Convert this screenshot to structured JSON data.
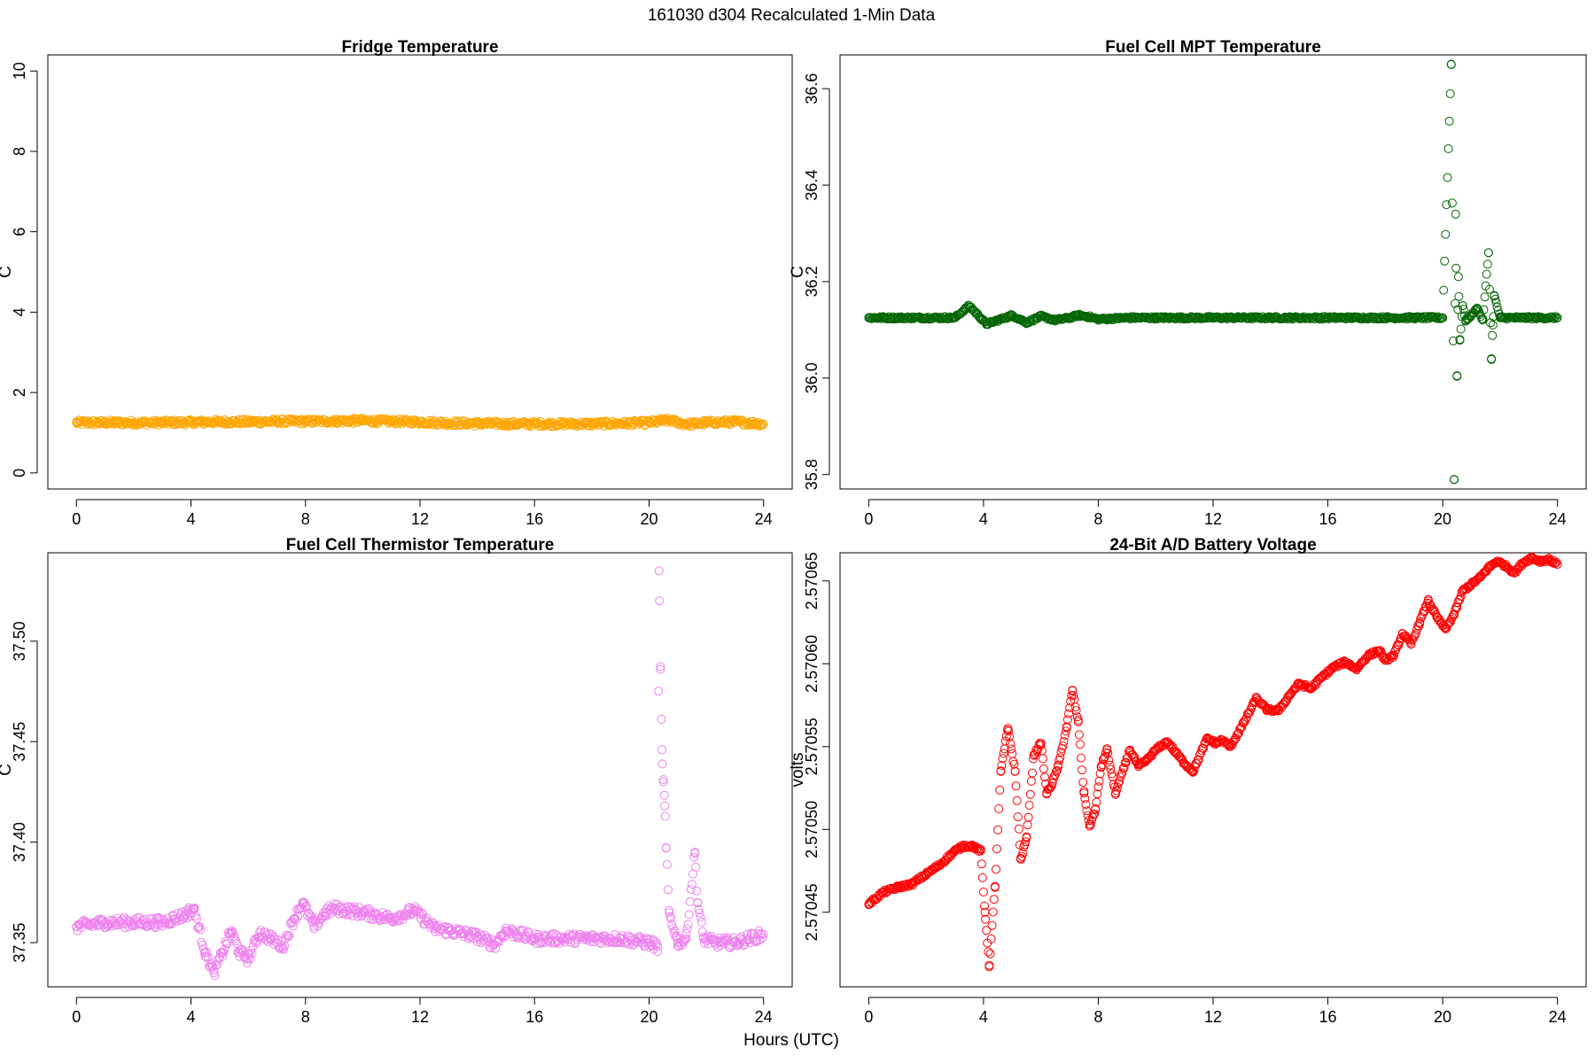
{
  "figure": {
    "suptitle": "161030   d304   Recalculated 1-Min Data",
    "xlabel": "Hours (UTC)"
  },
  "chart_data": [
    {
      "type": "scatter",
      "title": "Fridge Temperature",
      "xlabel": "",
      "ylabel": "C",
      "xlim": [
        -1,
        25
      ],
      "ylim": [
        -0.4,
        10.4
      ],
      "xticks": [
        0,
        4,
        8,
        12,
        16,
        20,
        24
      ],
      "yticks": [
        0,
        2,
        4,
        6,
        8,
        10
      ],
      "ytick_labels": [
        "0",
        "2",
        "4",
        "6",
        "8",
        "10"
      ],
      "grid": false,
      "color": "#FFA500",
      "series": [
        {
          "x": [
            0,
            1,
            2,
            3,
            4,
            5,
            6,
            7,
            8,
            9,
            10,
            11,
            12,
            13,
            14,
            15,
            16,
            17,
            18,
            19,
            20,
            20.5,
            20.8,
            21.2,
            21.6,
            22,
            23,
            24
          ],
          "y": [
            1.25,
            1.25,
            1.25,
            1.25,
            1.26,
            1.27,
            1.27,
            1.28,
            1.28,
            1.29,
            1.3,
            1.28,
            1.27,
            1.24,
            1.23,
            1.22,
            1.22,
            1.22,
            1.22,
            1.23,
            1.25,
            1.3,
            1.3,
            1.22,
            1.22,
            1.25,
            1.27,
            1.22
          ]
        }
      ]
    },
    {
      "type": "scatter",
      "title": "Fuel Cell MPT Temperature",
      "xlabel": "",
      "ylabel": "C",
      "xlim": [
        -1,
        25
      ],
      "ylim": [
        35.77,
        36.67
      ],
      "xticks": [
        0,
        4,
        8,
        12,
        16,
        20,
        24
      ],
      "yticks": [
        35.8,
        36.0,
        36.2,
        36.4,
        36.6
      ],
      "ytick_labels": [
        "35.8",
        "36.0",
        "36.2",
        "36.4",
        "36.6"
      ],
      "grid": false,
      "color": "#006400",
      "series": [
        {
          "x": [
            0,
            1,
            2,
            3,
            3.5,
            3.9,
            4.1,
            4.5,
            5,
            5.5,
            6,
            6.5,
            7,
            7.3,
            7.6,
            8,
            9,
            10,
            11,
            12,
            13,
            14,
            15,
            16,
            17,
            18,
            19,
            20,
            20.3,
            20.4,
            20.45,
            20.5,
            20.55,
            20.6,
            20.7,
            20.8,
            21,
            21.2,
            21.4,
            21.6,
            21.7,
            21.75,
            21.8,
            22,
            23,
            24
          ],
          "y": [
            36.125,
            36.125,
            36.125,
            36.125,
            36.15,
            36.125,
            36.112,
            36.12,
            36.13,
            36.115,
            36.128,
            36.12,
            36.125,
            36.13,
            36.128,
            36.122,
            36.125,
            36.125,
            36.125,
            36.125,
            36.125,
            36.125,
            36.125,
            36.125,
            36.125,
            36.125,
            36.125,
            36.125,
            36.65,
            35.79,
            36.34,
            36.005,
            36.21,
            36.08,
            36.15,
            36.12,
            36.13,
            36.145,
            36.12,
            36.26,
            36.04,
            36.11,
            36.17,
            36.125,
            36.125,
            36.125
          ]
        }
      ]
    },
    {
      "type": "scatter",
      "title": "Fuel Cell Thermistor Temperature",
      "xlabel": "",
      "ylabel": "C",
      "xlim": [
        -1,
        25
      ],
      "ylim": [
        37.328,
        37.544
      ],
      "xticks": [
        0,
        4,
        8,
        12,
        16,
        20,
        24
      ],
      "yticks": [
        37.35,
        37.4,
        37.45,
        37.5
      ],
      "ytick_labels": [
        "37.35",
        "37.40",
        "37.45",
        "37.50"
      ],
      "grid": false,
      "color": "#EE82EE",
      "series": [
        {
          "x": [
            0,
            1,
            2,
            3,
            3.8,
            4.1,
            4.5,
            4.8,
            5.1,
            5.4,
            5.7,
            6,
            6.4,
            6.8,
            7.2,
            7.6,
            7.9,
            8.3,
            8.7,
            9,
            10,
            11,
            11.8,
            12.5,
            13,
            14,
            14.6,
            15,
            16,
            17,
            18,
            19,
            20,
            20.3,
            20.35,
            20.4,
            20.45,
            20.5,
            20.55,
            20.6,
            20.7,
            21,
            21.3,
            21.6,
            21.7,
            21.9,
            22.3,
            23,
            24
          ],
          "y": [
            37.358,
            37.36,
            37.36,
            37.36,
            37.364,
            37.367,
            37.345,
            37.335,
            37.345,
            37.356,
            37.345,
            37.342,
            37.355,
            37.352,
            37.348,
            37.362,
            37.37,
            37.358,
            37.365,
            37.367,
            37.365,
            37.362,
            37.366,
            37.357,
            37.356,
            37.353,
            37.349,
            37.356,
            37.352,
            37.352,
            37.352,
            37.352,
            37.35,
            37.348,
            37.535,
            37.486,
            37.446,
            37.43,
            37.418,
            37.397,
            37.365,
            37.35,
            37.352,
            37.395,
            37.37,
            37.352,
            37.35,
            37.35,
            37.354
          ]
        }
      ]
    },
    {
      "type": "scatter",
      "title": "24-Bit A/D Battery Voltage",
      "xlabel": "",
      "ylabel": "volts",
      "xlim": [
        -1,
        25
      ],
      "ylim": [
        2.570405,
        2.570667
      ],
      "xticks": [
        0,
        4,
        8,
        12,
        16,
        20,
        24
      ],
      "yticks": [
        2.57045,
        2.5705,
        2.57055,
        2.5706,
        2.57065
      ],
      "ytick_labels": [
        "2.57045",
        "2.57050",
        "2.57055",
        "2.57060",
        "2.57065"
      ],
      "grid": false,
      "color": "#FF0000",
      "series": [
        {
          "x": [
            0,
            0.5,
            1,
            1.5,
            2,
            2.5,
            3,
            3.3,
            3.6,
            3.9,
            4.05,
            4.2,
            4.4,
            4.6,
            4.85,
            5.1,
            5.3,
            5.5,
            5.75,
            6,
            6.2,
            6.4,
            6.6,
            6.9,
            7.1,
            7.3,
            7.5,
            7.7,
            7.9,
            8.1,
            8.3,
            8.6,
            9.1,
            9.4,
            9.7,
            10,
            10.4,
            11,
            11.3,
            11.8,
            12.1,
            12.3,
            12.6,
            13,
            13.5,
            13.9,
            14.3,
            14.7,
            15,
            15.4,
            15.8,
            16.2,
            16.6,
            17,
            17.4,
            17.8,
            18,
            18.3,
            18.6,
            18.9,
            19.2,
            19.5,
            19.8,
            20.1,
            20.4,
            20.7,
            21,
            21.3,
            21.6,
            21.9,
            22.2,
            22.5,
            22.8,
            23.1,
            23.4,
            23.7,
            24
          ],
          "y": [
            2.570455,
            2.570462,
            2.570465,
            2.570467,
            2.570473,
            2.570479,
            2.570487,
            2.57049,
            2.57049,
            2.570487,
            2.57045,
            2.570418,
            2.570465,
            2.570535,
            2.570561,
            2.570535,
            2.570482,
            2.570495,
            2.570545,
            2.570552,
            2.570522,
            2.570528,
            2.570538,
            2.570562,
            2.570584,
            2.570565,
            2.570522,
            2.570502,
            2.570512,
            2.570538,
            2.570548,
            2.570522,
            2.570548,
            2.570538,
            2.570542,
            2.570548,
            2.570553,
            2.57054,
            2.570535,
            2.570555,
            2.570552,
            2.570554,
            2.57055,
            2.570562,
            2.570579,
            2.570572,
            2.570572,
            2.570582,
            2.570588,
            2.570585,
            2.570592,
            2.570598,
            2.570601,
            2.570597,
            2.570605,
            2.570608,
            2.570602,
            2.570605,
            2.570618,
            2.570612,
            2.570625,
            2.570638,
            2.570628,
            2.570621,
            2.57063,
            2.570644,
            2.570648,
            2.570652,
            2.570658,
            2.570662,
            2.570659,
            2.570655,
            2.570661,
            2.570664,
            2.570662,
            2.570663,
            2.57066
          ]
        }
      ]
    }
  ]
}
